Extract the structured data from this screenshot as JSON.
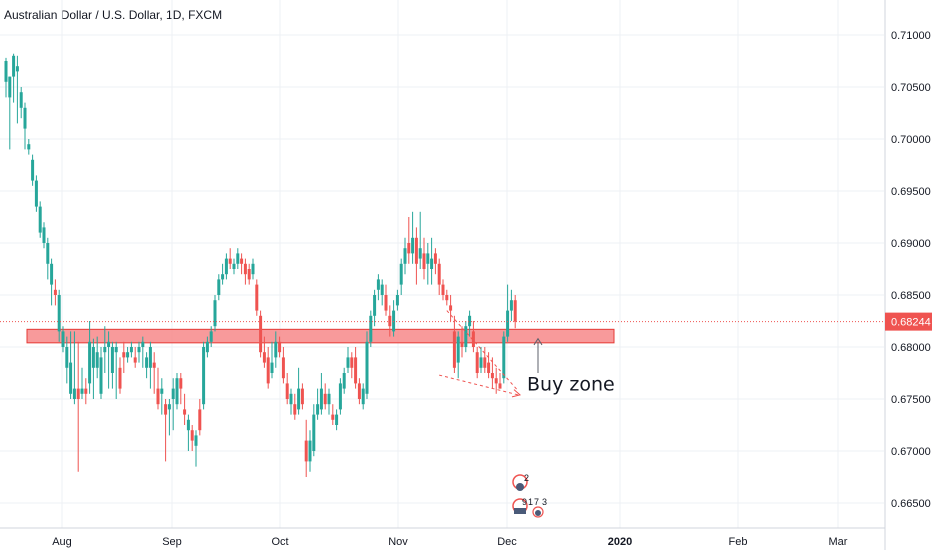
{
  "header": {
    "title": "Australian Dollar / U.S. Dollar, 1D, FXCM"
  },
  "colors": {
    "up": "#26a69a",
    "down": "#ef5350",
    "zone_fill": "#f7888a",
    "zone_stroke": "#e53935",
    "grid": "#eef0f4",
    "price_tag": "#ef5350"
  },
  "chart_data": {
    "type": "candlestick",
    "symbol": "AUDUSD",
    "title": "Australian Dollar / U.S. Dollar, 1D, FXCM",
    "ylim": [
      0.6625,
      0.7125
    ],
    "y_ticks": [
      "0.71000",
      "0.70500",
      "0.70000",
      "0.69500",
      "0.69000",
      "0.68500",
      "0.68000",
      "0.67500",
      "0.67000",
      "0.66500"
    ],
    "x_ticks": [
      "Aug",
      "Sep",
      "Oct",
      "Nov",
      "Dec",
      "2020",
      "Feb",
      "Mar"
    ],
    "last_price": "0.68244",
    "grid": true,
    "series": [
      {
        "name": "",
        "candles": [
          [
            0.7055,
            0.7075,
            0.704,
            0.7078
          ],
          [
            0.704,
            0.706,
            0.699,
            0.706
          ],
          [
            0.706,
            0.708,
            0.7035,
            0.7082
          ],
          [
            0.7065,
            0.707,
            0.7015,
            0.708
          ],
          [
            0.703,
            0.7045,
            0.702,
            0.705
          ],
          [
            0.701,
            0.703,
            0.699,
            0.7035
          ],
          [
            0.699,
            0.6995,
            0.6985,
            0.7
          ],
          [
            0.696,
            0.698,
            0.6955,
            0.6985
          ],
          [
            0.6935,
            0.696,
            0.693,
            0.6965
          ],
          [
            0.691,
            0.6935,
            0.6905,
            0.694
          ],
          [
            0.69,
            0.6915,
            0.6895,
            0.692
          ],
          [
            0.688,
            0.69,
            0.6865,
            0.6905
          ],
          [
            0.686,
            0.688,
            0.684,
            0.6885
          ],
          [
            0.6855,
            0.685,
            0.684,
            0.6865
          ],
          [
            0.6815,
            0.685,
            0.6805,
            0.6855
          ],
          [
            0.68,
            0.6815,
            0.6795,
            0.682
          ],
          [
            0.678,
            0.68,
            0.6765,
            0.681
          ],
          [
            0.6755,
            0.6785,
            0.675,
            0.6815
          ],
          [
            0.675,
            0.676,
            0.6745,
            0.6815
          ],
          [
            0.676,
            0.675,
            0.668,
            0.6805
          ],
          [
            0.6755,
            0.676,
            0.675,
            0.678
          ],
          [
            0.676,
            0.6755,
            0.6745,
            0.677
          ],
          [
            0.6765,
            0.6805,
            0.6755,
            0.6825
          ],
          [
            0.678,
            0.68,
            0.675,
            0.6808
          ],
          [
            0.678,
            0.6795,
            0.677,
            0.681
          ],
          [
            0.6755,
            0.679,
            0.675,
            0.68
          ],
          [
            0.6795,
            0.68,
            0.6775,
            0.682
          ],
          [
            0.68,
            0.6805,
            0.676,
            0.6815
          ],
          [
            0.6775,
            0.68,
            0.676,
            0.6805
          ],
          [
            0.6795,
            0.68,
            0.675,
            0.6805
          ],
          [
            0.678,
            0.676,
            0.6755,
            0.679
          ],
          [
            0.6795,
            0.679,
            0.6775,
            0.6805
          ],
          [
            0.679,
            0.6795,
            0.6785,
            0.68
          ],
          [
            0.6795,
            0.68,
            0.679,
            0.6805
          ],
          [
            0.679,
            0.6785,
            0.678,
            0.68
          ],
          [
            0.6795,
            0.68,
            0.6785,
            0.6805
          ],
          [
            0.68,
            0.6805,
            0.678,
            0.681
          ],
          [
            0.678,
            0.679,
            0.677,
            0.6795
          ],
          [
            0.678,
            0.68,
            0.676,
            0.6805
          ],
          [
            0.6785,
            0.678,
            0.6755,
            0.6795
          ],
          [
            0.676,
            0.6745,
            0.674,
            0.678
          ],
          [
            0.6755,
            0.676,
            0.6735,
            0.677
          ],
          [
            0.6745,
            0.6735,
            0.669,
            0.675
          ],
          [
            0.674,
            0.6745,
            0.6715,
            0.675
          ],
          [
            0.675,
            0.676,
            0.672,
            0.677
          ],
          [
            0.6745,
            0.677,
            0.674,
            0.6775
          ],
          [
            0.677,
            0.676,
            0.6745,
            0.6775
          ],
          [
            0.674,
            0.6735,
            0.6725,
            0.6755
          ],
          [
            0.672,
            0.673,
            0.67,
            0.6735
          ],
          [
            0.672,
            0.671,
            0.67,
            0.6725
          ],
          [
            0.6705,
            0.6715,
            0.6685,
            0.672
          ],
          [
            0.674,
            0.672,
            0.6715,
            0.675
          ],
          [
            0.6745,
            0.68,
            0.674,
            0.6805
          ],
          [
            0.6795,
            0.6805,
            0.679,
            0.681
          ],
          [
            0.6805,
            0.6815,
            0.68,
            0.682
          ],
          [
            0.682,
            0.6845,
            0.6815,
            0.685
          ],
          [
            0.685,
            0.6865,
            0.6845,
            0.687
          ],
          [
            0.6865,
            0.687,
            0.686,
            0.688
          ],
          [
            0.687,
            0.6885,
            0.6865,
            0.689
          ],
          [
            0.6885,
            0.688,
            0.6875,
            0.6895
          ],
          [
            0.6875,
            0.688,
            0.687,
            0.6885
          ],
          [
            0.688,
            0.689,
            0.6875,
            0.6895
          ],
          [
            0.6885,
            0.688,
            0.687,
            0.689
          ],
          [
            0.688,
            0.687,
            0.686,
            0.6885
          ],
          [
            0.6875,
            0.6865,
            0.686,
            0.688
          ],
          [
            0.687,
            0.688,
            0.6865,
            0.6885
          ],
          [
            0.686,
            0.6835,
            0.683,
            0.6865
          ],
          [
            0.683,
            0.6795,
            0.679,
            0.6835
          ],
          [
            0.6795,
            0.6785,
            0.678,
            0.681
          ],
          [
            0.679,
            0.6765,
            0.676,
            0.68
          ],
          [
            0.6775,
            0.6785,
            0.677,
            0.6805
          ],
          [
            0.679,
            0.6805,
            0.678,
            0.6815
          ],
          [
            0.6805,
            0.6795,
            0.679,
            0.681
          ],
          [
            0.679,
            0.677,
            0.6765,
            0.68
          ],
          [
            0.6765,
            0.675,
            0.6745,
            0.6775
          ],
          [
            0.6745,
            0.6755,
            0.6735,
            0.676
          ],
          [
            0.6745,
            0.6735,
            0.673,
            0.6755
          ],
          [
            0.674,
            0.676,
            0.6735,
            0.678
          ],
          [
            0.676,
            0.6745,
            0.674,
            0.6765
          ],
          [
            0.671,
            0.669,
            0.6675,
            0.673
          ],
          [
            0.669,
            0.671,
            0.668,
            0.672
          ],
          [
            0.67,
            0.6735,
            0.6695,
            0.6745
          ],
          [
            0.6735,
            0.6745,
            0.673,
            0.676
          ],
          [
            0.674,
            0.676,
            0.6735,
            0.6775
          ],
          [
            0.6755,
            0.6745,
            0.674,
            0.6765
          ],
          [
            0.6745,
            0.6755,
            0.6735,
            0.676
          ],
          [
            0.6735,
            0.673,
            0.6725,
            0.6745
          ],
          [
            0.6725,
            0.6735,
            0.672,
            0.674
          ],
          [
            0.674,
            0.6765,
            0.6735,
            0.677
          ],
          [
            0.676,
            0.6775,
            0.6755,
            0.678
          ],
          [
            0.678,
            0.679,
            0.6775,
            0.68
          ],
          [
            0.679,
            0.678,
            0.677,
            0.6795
          ],
          [
            0.679,
            0.6765,
            0.676,
            0.68
          ],
          [
            0.6765,
            0.675,
            0.6745,
            0.677
          ],
          [
            0.6745,
            0.676,
            0.674,
            0.6765
          ],
          [
            0.6755,
            0.6805,
            0.675,
            0.6815
          ],
          [
            0.6805,
            0.683,
            0.68,
            0.6835
          ],
          [
            0.683,
            0.685,
            0.682,
            0.6855
          ],
          [
            0.6855,
            0.6865,
            0.6845,
            0.687
          ],
          [
            0.685,
            0.686,
            0.684,
            0.6865
          ],
          [
            0.685,
            0.6835,
            0.683,
            0.686
          ],
          [
            0.683,
            0.682,
            0.681,
            0.684
          ],
          [
            0.6815,
            0.6835,
            0.681,
            0.6845
          ],
          [
            0.684,
            0.685,
            0.6835,
            0.6855
          ],
          [
            0.686,
            0.688,
            0.685,
            0.6885
          ],
          [
            0.688,
            0.6895,
            0.687,
            0.6905
          ],
          [
            0.69,
            0.689,
            0.688,
            0.6925
          ],
          [
            0.689,
            0.6905,
            0.688,
            0.693
          ],
          [
            0.6905,
            0.688,
            0.686,
            0.6915
          ],
          [
            0.6885,
            0.6895,
            0.6875,
            0.693
          ],
          [
            0.689,
            0.6875,
            0.6865,
            0.6905
          ],
          [
            0.688,
            0.689,
            0.686,
            0.69
          ],
          [
            0.6875,
            0.6885,
            0.686,
            0.6905
          ],
          [
            0.689,
            0.688,
            0.687,
            0.6895
          ],
          [
            0.688,
            0.686,
            0.685,
            0.6885
          ],
          [
            0.686,
            0.685,
            0.6845,
            0.6865
          ],
          [
            0.685,
            0.6845,
            0.684,
            0.6855
          ],
          [
            0.684,
            0.6835,
            0.6825,
            0.685
          ],
          [
            0.6815,
            0.678,
            0.6775,
            0.683
          ],
          [
            0.6785,
            0.681,
            0.677,
            0.6815
          ],
          [
            0.6805,
            0.68,
            0.679,
            0.682
          ],
          [
            0.68,
            0.682,
            0.6795,
            0.6825
          ],
          [
            0.682,
            0.683,
            0.681,
            0.6835
          ],
          [
            0.6815,
            0.68,
            0.6795,
            0.6825
          ],
          [
            0.6795,
            0.6775,
            0.677,
            0.68
          ],
          [
            0.678,
            0.679,
            0.6775,
            0.68
          ],
          [
            0.679,
            0.678,
            0.6775,
            0.68
          ],
          [
            0.6785,
            0.6775,
            0.677,
            0.6795
          ],
          [
            0.6775,
            0.677,
            0.676,
            0.679
          ],
          [
            0.677,
            0.6765,
            0.6755,
            0.678
          ],
          [
            0.6765,
            0.676,
            0.676,
            0.6775
          ],
          [
            0.677,
            0.681,
            0.6765,
            0.6815
          ],
          [
            0.681,
            0.6835,
            0.6805,
            0.686
          ],
          [
            0.6835,
            0.6845,
            0.6825,
            0.6855
          ],
          [
            0.6845,
            0.68244,
            0.6818,
            0.685
          ]
        ]
      }
    ],
    "annotations": [
      {
        "type": "zone",
        "label": "",
        "y_low": 0.6804,
        "y_high": 0.6817
      },
      {
        "type": "text",
        "label": "Buy zone"
      }
    ],
    "event_badges": [
      "2",
      "9",
      "1",
      "7",
      "3"
    ]
  }
}
